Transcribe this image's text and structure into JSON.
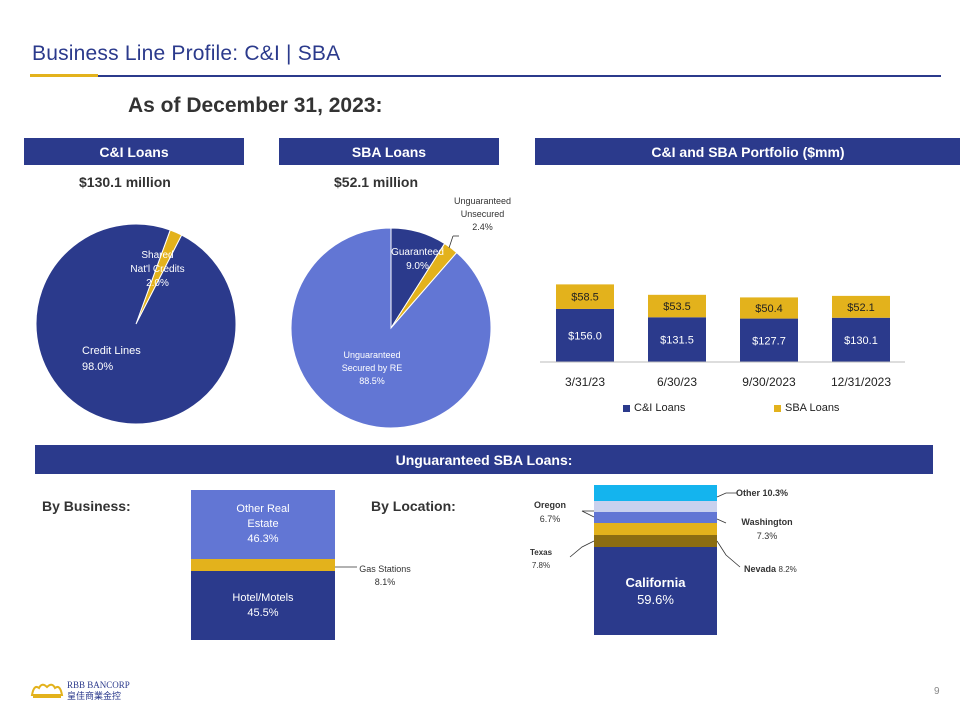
{
  "header": {
    "title": "Business Line Profile:  C&I | SBA",
    "as_of": "As of December 31, 2023:"
  },
  "ci_loans": {
    "bar_label": "C&I Loans",
    "amount": "$130.1 million",
    "slices": [
      {
        "label": "Credit Lines",
        "pct_label": "98.0%",
        "value": 98.0,
        "color": "#2b3a8c"
      },
      {
        "label": "Shared Nat'l Credits",
        "pct_label": "2.0%",
        "value": 2.0,
        "color": "#e3b21c"
      }
    ]
  },
  "sba_loans": {
    "bar_label": "SBA Loans",
    "amount": "$52.1 million",
    "slices": [
      {
        "label": "Guaranteed",
        "pct_label": "9.0%",
        "value": 9.0,
        "color": "#2b3a8c"
      },
      {
        "label": "Unguaranteed Unsecured",
        "pct_label": "2.4%",
        "value": 2.4,
        "color": "#e3b21c"
      },
      {
        "label": "Unguaranteed Secured by RE",
        "pct_label": "88.5%",
        "value": 88.5,
        "color": "#6276d4"
      }
    ]
  },
  "portfolio": {
    "bar_label": "C&I and SBA Portfolio ($mm)"
  },
  "chart_data": {
    "type": "bar",
    "stacked": true,
    "categories": [
      "3/31/23",
      "6/30/23",
      "9/30/2023",
      "12/31/2023"
    ],
    "series": [
      {
        "name": "C&I Loans",
        "values": [
          156.0,
          131.5,
          127.7,
          130.1
        ],
        "labels": [
          "$156.0",
          "$131.5",
          "$127.7",
          "$130.1"
        ],
        "color": "#2b3a8c"
      },
      {
        "name": "SBA Loans",
        "values": [
          58.5,
          53.5,
          50.4,
          52.1
        ],
        "labels": [
          "$58.5",
          "$53.5",
          "$50.4",
          "$52.1"
        ],
        "color": "#e3b21c"
      }
    ],
    "legend": "bottom",
    "grid": false
  },
  "unguaranteed": {
    "bar_label": "Unguaranteed SBA Loans:",
    "by_business_label": "By Business:",
    "by_location_label": "By Location:",
    "business": [
      {
        "line1": "Other Real",
        "line2": "Estate",
        "pct": "46.3%",
        "value": 46.3,
        "color": "#6276d4"
      },
      {
        "line1": "Gas Stations",
        "line2": "",
        "pct": "8.1%",
        "value": 8.1,
        "color": "#e3b21c"
      },
      {
        "line1": "Hotel/Motels",
        "line2": "",
        "pct": "45.5%",
        "value": 45.5,
        "color": "#2b3a8c"
      }
    ],
    "location": [
      {
        "name": "Other",
        "pct": "10.3%",
        "value": 10.3,
        "color": "#14b4ee"
      },
      {
        "name": "Washington",
        "pct": "7.3%",
        "value": 7.3,
        "color": "#c9d1ee"
      },
      {
        "name": "Oregon",
        "pct": "6.7%",
        "value": 6.7,
        "color": "#6276d4"
      },
      {
        "name": "Nevada",
        "pct": "8.2%",
        "value": 8.2,
        "color": "#e3b21c"
      },
      {
        "name": "Texas",
        "pct": "7.8%",
        "value": 7.8,
        "color": "#8c6d12"
      },
      {
        "name": "California",
        "pct": "59.6%",
        "value": 59.6,
        "color": "#2b3a8c"
      }
    ]
  },
  "footer": {
    "logo_line1": "RBB BANCORP",
    "logo_line2": "皇佳商業金控",
    "page_number": "9"
  }
}
